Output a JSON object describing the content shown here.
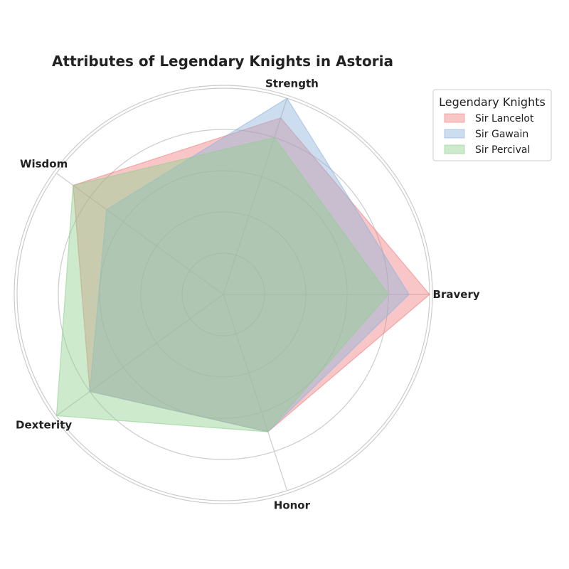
{
  "chart_data": {
    "type": "radar",
    "title": "Attributes of Legendary Knights in Astoria",
    "categories": [
      "Bravery",
      "Strength",
      "Wisdom",
      "Dexterity",
      "Honor"
    ],
    "rlim": [
      0,
      10
    ],
    "grid": true,
    "legend_title": "Legendary Knights",
    "legend_position": "top-right",
    "series": [
      {
        "name": "Sir Lancelot",
        "color": "#f08080",
        "values": [
          10,
          9,
          9,
          8,
          7
        ]
      },
      {
        "name": "Sir Gawain",
        "color": "#8fb4dc",
        "values": [
          9,
          10,
          7,
          8,
          7
        ]
      },
      {
        "name": "Sir Percival",
        "color": "#90d090",
        "values": [
          8,
          8,
          9,
          10,
          7
        ]
      }
    ]
  }
}
